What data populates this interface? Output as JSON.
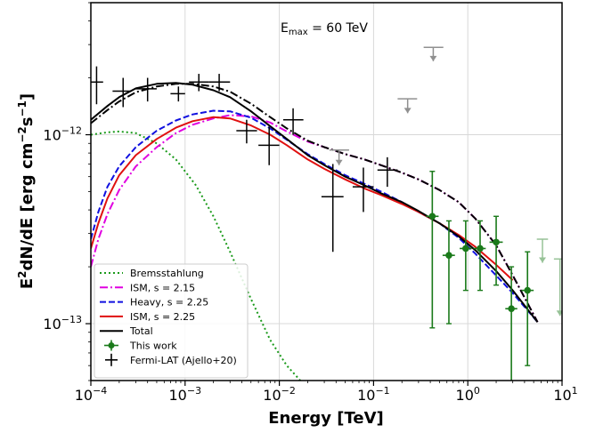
{
  "chart_data": {
    "type": "line",
    "annotation": {
      "main": "E",
      "sub": "max",
      "rest": " = 60 TeV"
    },
    "xlabel": "Energy [TeV]",
    "ylabel": {
      "a": "E",
      "b": "2",
      "c": "dN/dE [erg cm",
      "d": "−2",
      "e": "s",
      "f": "−1",
      "g": "]"
    },
    "x_scale": "log",
    "y_scale": "log",
    "xlim": [
      0.0001,
      10
    ],
    "ylim": [
      5e-14,
      5e-12
    ],
    "x_ticks": [
      {
        "base": "10",
        "exp": "−4",
        "value": 0.0001
      },
      {
        "base": "10",
        "exp": "−3",
        "value": 0.001
      },
      {
        "base": "10",
        "exp": "−2",
        "value": 0.01
      },
      {
        "base": "10",
        "exp": "−1",
        "value": 0.1
      },
      {
        "base": "10",
        "exp": "0",
        "value": 1
      },
      {
        "base": "10",
        "exp": "1",
        "value": 10
      }
    ],
    "y_ticks": [
      {
        "base": "10",
        "exp": "−13",
        "value": 1e-13
      },
      {
        "base": "10",
        "exp": "−12",
        "value": 1e-12
      }
    ],
    "grid": true,
    "legend_position": "lower-left",
    "colors": {
      "brems": "#1a9a1a",
      "ism215": "#e000e0",
      "heavy": "#1010e0",
      "ism225": "#e01010",
      "total": "#000000",
      "this_work": "#1a7a1a",
      "fermi": "#000000",
      "upper_limit": "#909090"
    },
    "series": [
      {
        "name": "Bremsstahlung",
        "key": "brems",
        "style": "dotted",
        "x": [
          0.0001,
          0.00015,
          0.0002,
          0.0003,
          0.0005,
          0.0008,
          0.0013,
          0.002,
          0.003,
          0.005,
          0.008,
          0.012,
          0.018
        ],
        "y": [
          1e-12,
          1.03e-12,
          1.04e-12,
          1.02e-12,
          9e-13,
          7.4e-13,
          5.4e-13,
          3.7e-13,
          2.4e-13,
          1.35e-13,
          8.2e-14,
          6e-14,
          4.8e-14
        ]
      },
      {
        "name": "ISM, s = 2.15",
        "key": "ism215",
        "style": "dashdot",
        "x": [
          0.0001,
          0.00012,
          0.00015,
          0.0002,
          0.0003,
          0.0005,
          0.0008,
          0.0012,
          0.002,
          0.003,
          0.005,
          0.008,
          0.012,
          0.02,
          0.03,
          0.05,
          0.08,
          0.12,
          0.2,
          0.3,
          0.5,
          0.8,
          1.2,
          2,
          3,
          5.5
        ],
        "y": [
          2e-13,
          2.8e-13,
          3.8e-13,
          5.1e-13,
          6.8e-13,
          8.6e-13,
          1.02e-12,
          1.13e-12,
          1.22e-12,
          1.27e-12,
          1.25e-12,
          1.16e-12,
          1.04e-12,
          9.2e-13,
          8.6e-13,
          7.9e-13,
          7.4e-13,
          6.9e-13,
          6.3e-13,
          5.8e-13,
          5.1e-13,
          4.4e-13,
          3.6e-13,
          2.6e-13,
          1.8e-13,
          1.02e-13
        ]
      },
      {
        "name": "Heavy, s = 2.25",
        "key": "heavy",
        "style": "dashed",
        "x": [
          0.0001,
          0.00012,
          0.00015,
          0.0002,
          0.0003,
          0.0005,
          0.0008,
          0.0012,
          0.002,
          0.003,
          0.005,
          0.008,
          0.012,
          0.02,
          0.03,
          0.05,
          0.08,
          0.12,
          0.2,
          0.3,
          0.5,
          0.8,
          1.2,
          2,
          3,
          5.5
        ],
        "y": [
          2.8e-13,
          3.9e-13,
          5.3e-13,
          6.8e-13,
          8.6e-13,
          1.05e-12,
          1.19e-12,
          1.28e-12,
          1.34e-12,
          1.33e-12,
          1.23e-12,
          1.08e-12,
          9.4e-13,
          7.9e-13,
          7e-13,
          6.1e-13,
          5.5e-13,
          5e-13,
          4.4e-13,
          3.9e-13,
          3.4e-13,
          2.85e-13,
          2.35e-13,
          1.8e-13,
          1.45e-13,
          1.02e-13
        ]
      },
      {
        "name": "ISM, s = 2.25",
        "key": "ism225",
        "style": "solid",
        "x": [
          0.0001,
          0.00012,
          0.00015,
          0.0002,
          0.0003,
          0.0005,
          0.0008,
          0.0012,
          0.002,
          0.003,
          0.005,
          0.008,
          0.012,
          0.02,
          0.03,
          0.05,
          0.08,
          0.12,
          0.2,
          0.3,
          0.5,
          0.8,
          1.2,
          2,
          3
        ],
        "y": [
          2.5e-13,
          3.4e-13,
          4.6e-13,
          6.1e-13,
          7.8e-13,
          9.5e-13,
          1.09e-12,
          1.18e-12,
          1.24e-12,
          1.22e-12,
          1.12e-12,
          1e-12,
          8.8e-13,
          7.4e-13,
          6.6e-13,
          5.8e-13,
          5.2e-13,
          4.8e-13,
          4.3e-13,
          3.9e-13,
          3.4e-13,
          2.95e-13,
          2.55e-13,
          2.05e-13,
          1.7e-13
        ]
      },
      {
        "name": "Total",
        "key": "total",
        "style": "solid",
        "x": [
          0.0001,
          0.00015,
          0.0002,
          0.0003,
          0.0005,
          0.0008,
          0.0012,
          0.002,
          0.003,
          0.005,
          0.008,
          0.012,
          0.02,
          0.03,
          0.05,
          0.08,
          0.12,
          0.2,
          0.3,
          0.5,
          0.8,
          1.2,
          2,
          3,
          5.5
        ],
        "y": [
          1.2e-12,
          1.42e-12,
          1.58e-12,
          1.76e-12,
          1.86e-12,
          1.88e-12,
          1.84e-12,
          1.72e-12,
          1.58e-12,
          1.33e-12,
          1.11e-12,
          9.5e-13,
          7.8e-13,
          6.9e-13,
          6e-13,
          5.4e-13,
          4.9e-13,
          4.4e-13,
          3.95e-13,
          3.4e-13,
          2.9e-13,
          2.45e-13,
          1.9e-13,
          1.5e-13,
          1.02e-13
        ]
      },
      {
        "name": "",
        "key": "total_dashdot",
        "color_key": "total",
        "style": "dashdot",
        "x": [
          0.0001,
          0.00015,
          0.0002,
          0.0003,
          0.0005,
          0.0008,
          0.0012,
          0.002,
          0.003,
          0.005,
          0.008,
          0.012,
          0.02,
          0.03,
          0.05,
          0.08,
          0.12,
          0.2,
          0.3,
          0.5,
          0.8,
          1.2,
          2,
          3,
          5.5
        ],
        "y": [
          1.15e-12,
          1.35e-12,
          1.5e-12,
          1.68e-12,
          1.8e-12,
          1.86e-12,
          1.86e-12,
          1.8e-12,
          1.69e-12,
          1.46e-12,
          1.24e-12,
          1.08e-12,
          9.3e-13,
          8.6e-13,
          7.9e-13,
          7.4e-13,
          6.9e-13,
          6.3e-13,
          5.8e-13,
          5.1e-13,
          4.4e-13,
          3.6e-13,
          2.6e-13,
          1.8e-13,
          1.02e-13
        ]
      }
    ],
    "points": {
      "this_work": {
        "name": "This work",
        "data": [
          {
            "x": 0.42,
            "y": 3.7e-13,
            "ylo": 9.5e-14,
            "yhi": 6.4e-13,
            "xlo": 0.36,
            "xhi": 0.49
          },
          {
            "x": 0.63,
            "y": 2.3e-13,
            "ylo": 1e-13,
            "yhi": 3.5e-13,
            "xlo": 0.54,
            "xhi": 0.73
          },
          {
            "x": 0.95,
            "y": 2.5e-13,
            "ylo": 1.5e-13,
            "yhi": 3.5e-13,
            "xlo": 0.82,
            "xhi": 1.1
          },
          {
            "x": 1.35,
            "y": 2.5e-13,
            "ylo": 1.5e-13,
            "yhi": 3.5e-13,
            "xlo": 1.15,
            "xhi": 1.55
          },
          {
            "x": 2.0,
            "y": 2.7e-13,
            "ylo": 1.6e-13,
            "yhi": 3.7e-13,
            "xlo": 1.7,
            "xhi": 2.35
          },
          {
            "x": 2.9,
            "y": 1.2e-13,
            "ylo": 4.5e-14,
            "yhi": 2e-13,
            "xlo": 2.5,
            "xhi": 3.35
          },
          {
            "x": 4.3,
            "y": 1.5e-13,
            "ylo": 6e-14,
            "yhi": 2.4e-13,
            "xlo": 3.7,
            "xhi": 5.0
          }
        ],
        "faded_upper_limits": [
          {
            "x": 6.2,
            "y": 2.8e-13,
            "xlo": 5.4,
            "xhi": 7.1,
            "yto": 2.1e-13
          },
          {
            "x": 9.5,
            "y": 2.2e-13,
            "xlo": 8.2,
            "xhi": 11,
            "yto": 1.1e-13
          }
        ]
      },
      "fermi": {
        "name": "Fermi-LAT (Ajello+20)",
        "data": [
          {
            "x": 0.000115,
            "y": 1.9e-12,
            "xlo": 0.0001,
            "xhi": 0.000135,
            "ylo": 1.45e-12,
            "yhi": 2.3e-12
          },
          {
            "x": 0.00022,
            "y": 1.7e-12,
            "xlo": 0.00017,
            "xhi": 0.00027,
            "ylo": 1.4e-12,
            "yhi": 2e-12
          },
          {
            "x": 0.0004,
            "y": 1.75e-12,
            "xlo": 0.0003,
            "xhi": 0.0005,
            "ylo": 1.5e-12,
            "yhi": 2e-12
          },
          {
            "x": 0.00085,
            "y": 1.65e-12,
            "xlo": 0.0007,
            "xhi": 0.001,
            "ylo": 1.5e-12,
            "yhi": 1.8e-12
          },
          {
            "x": 0.0014,
            "y": 1.9e-12,
            "xlo": 0.0011,
            "xhi": 0.0018,
            "ylo": 1.7e-12,
            "yhi": 2.1e-12
          },
          {
            "x": 0.0023,
            "y": 1.9e-12,
            "xlo": 0.0018,
            "xhi": 0.003,
            "ylo": 1.7e-12,
            "yhi": 2.1e-12
          },
          {
            "x": 0.0045,
            "y": 1.05e-12,
            "xlo": 0.0035,
            "xhi": 0.0058,
            "ylo": 9e-13,
            "yhi": 1.2e-12
          },
          {
            "x": 0.0078,
            "y": 8.8e-13,
            "xlo": 0.006,
            "xhi": 0.01,
            "ylo": 6.9e-13,
            "yhi": 1.1e-12
          },
          {
            "x": 0.014,
            "y": 1.2e-12,
            "xlo": 0.011,
            "xhi": 0.018,
            "ylo": 1e-12,
            "yhi": 1.38e-12
          },
          {
            "x": 0.037,
            "y": 4.7e-13,
            "xlo": 0.028,
            "xhi": 0.048,
            "ylo": 2.4e-13,
            "yhi": 7e-13
          },
          {
            "x": 0.078,
            "y": 5.3e-13,
            "xlo": 0.06,
            "xhi": 0.1,
            "ylo": 3.9e-13,
            "yhi": 6.7e-13
          },
          {
            "x": 0.14,
            "y": 6.5e-13,
            "xlo": 0.11,
            "xhi": 0.18,
            "ylo": 5.3e-13,
            "yhi": 7.6e-13
          }
        ],
        "upper_limits": [
          {
            "x": 0.043,
            "y": 8.3e-13,
            "xlo": 0.034,
            "xhi": 0.055,
            "yto": 6.9e-13
          },
          {
            "x": 0.23,
            "y": 1.55e-12,
            "xlo": 0.18,
            "xhi": 0.29,
            "yto": 1.3e-12
          },
          {
            "x": 0.43,
            "y": 2.9e-12,
            "xlo": 0.34,
            "xhi": 0.55,
            "yto": 2.45e-12
          }
        ]
      }
    },
    "legend": [
      {
        "label": "Bremsstahlung",
        "key": "brems",
        "kind": "line",
        "style": "dotted"
      },
      {
        "label": "ISM, s = 2.15",
        "key": "ism215",
        "kind": "line",
        "style": "dashdot"
      },
      {
        "label": "Heavy, s = 2.25",
        "key": "heavy",
        "kind": "line",
        "style": "dashed"
      },
      {
        "label": "ISM, s = 2.25",
        "key": "ism225",
        "kind": "line",
        "style": "solid"
      },
      {
        "label": "Total",
        "key": "total",
        "kind": "line",
        "style": "solid"
      },
      {
        "label": "This work",
        "key": "this_work",
        "kind": "errpoint"
      },
      {
        "label": "Fermi-LAT (Ajello+20)",
        "key": "fermi",
        "kind": "cross"
      }
    ]
  }
}
